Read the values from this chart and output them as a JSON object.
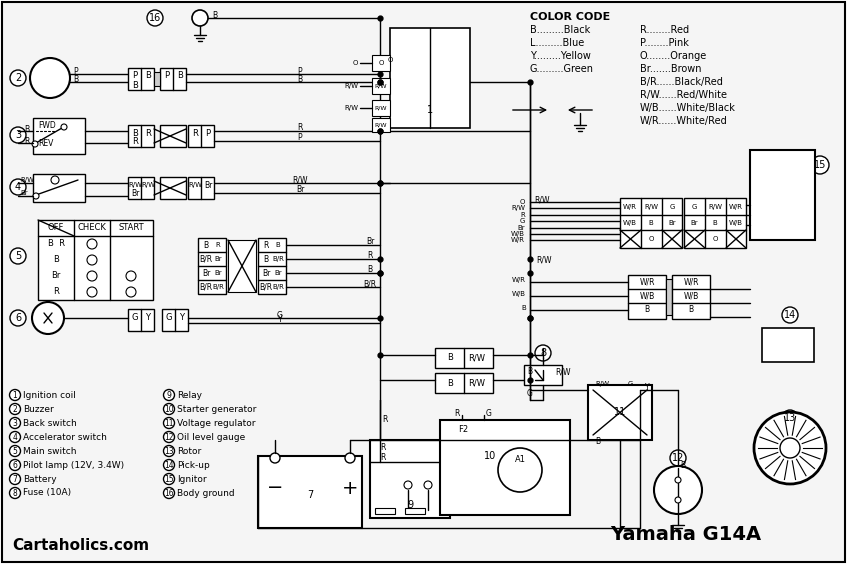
{
  "bg_color": "#f0f0f0",
  "border_color": "#000000",
  "color_code_title": "COLOR CODE",
  "color_code_left": [
    [
      "B",
      "Black"
    ],
    [
      "L",
      "Blue"
    ],
    [
      "Y",
      "Yellow"
    ],
    [
      "G",
      "Green"
    ]
  ],
  "color_code_right": [
    [
      "R",
      "Red"
    ],
    [
      "P",
      "Pink"
    ],
    [
      "O",
      "Orange"
    ],
    [
      "Br",
      "Brown"
    ],
    [
      "B/R",
      "Black/Red"
    ],
    [
      "R/W",
      "Red/White"
    ],
    [
      "W/B",
      "White/Black"
    ],
    [
      "W/R",
      "White/Red"
    ]
  ],
  "legend_left": [
    [
      1,
      "Ignition coil"
    ],
    [
      2,
      "Buzzer"
    ],
    [
      3,
      "Back switch"
    ],
    [
      4,
      "Accelerator switch"
    ],
    [
      5,
      "Main switch"
    ],
    [
      6,
      "Pilot lamp (12V, 3.4W)"
    ],
    [
      7,
      "Battery"
    ],
    [
      8,
      "Fuse (10A)"
    ]
  ],
  "legend_right": [
    [
      9,
      "Relay"
    ],
    [
      10,
      "Starter generator"
    ],
    [
      11,
      "Voltage regulator"
    ],
    [
      12,
      "Oil level gauge"
    ],
    [
      13,
      "Rotor"
    ],
    [
      14,
      "Pick-up"
    ],
    [
      15,
      "Ignitor"
    ],
    [
      16,
      "Body ground"
    ]
  ],
  "watermark": "Cartaholics.com",
  "model": "Yamaha G14A"
}
